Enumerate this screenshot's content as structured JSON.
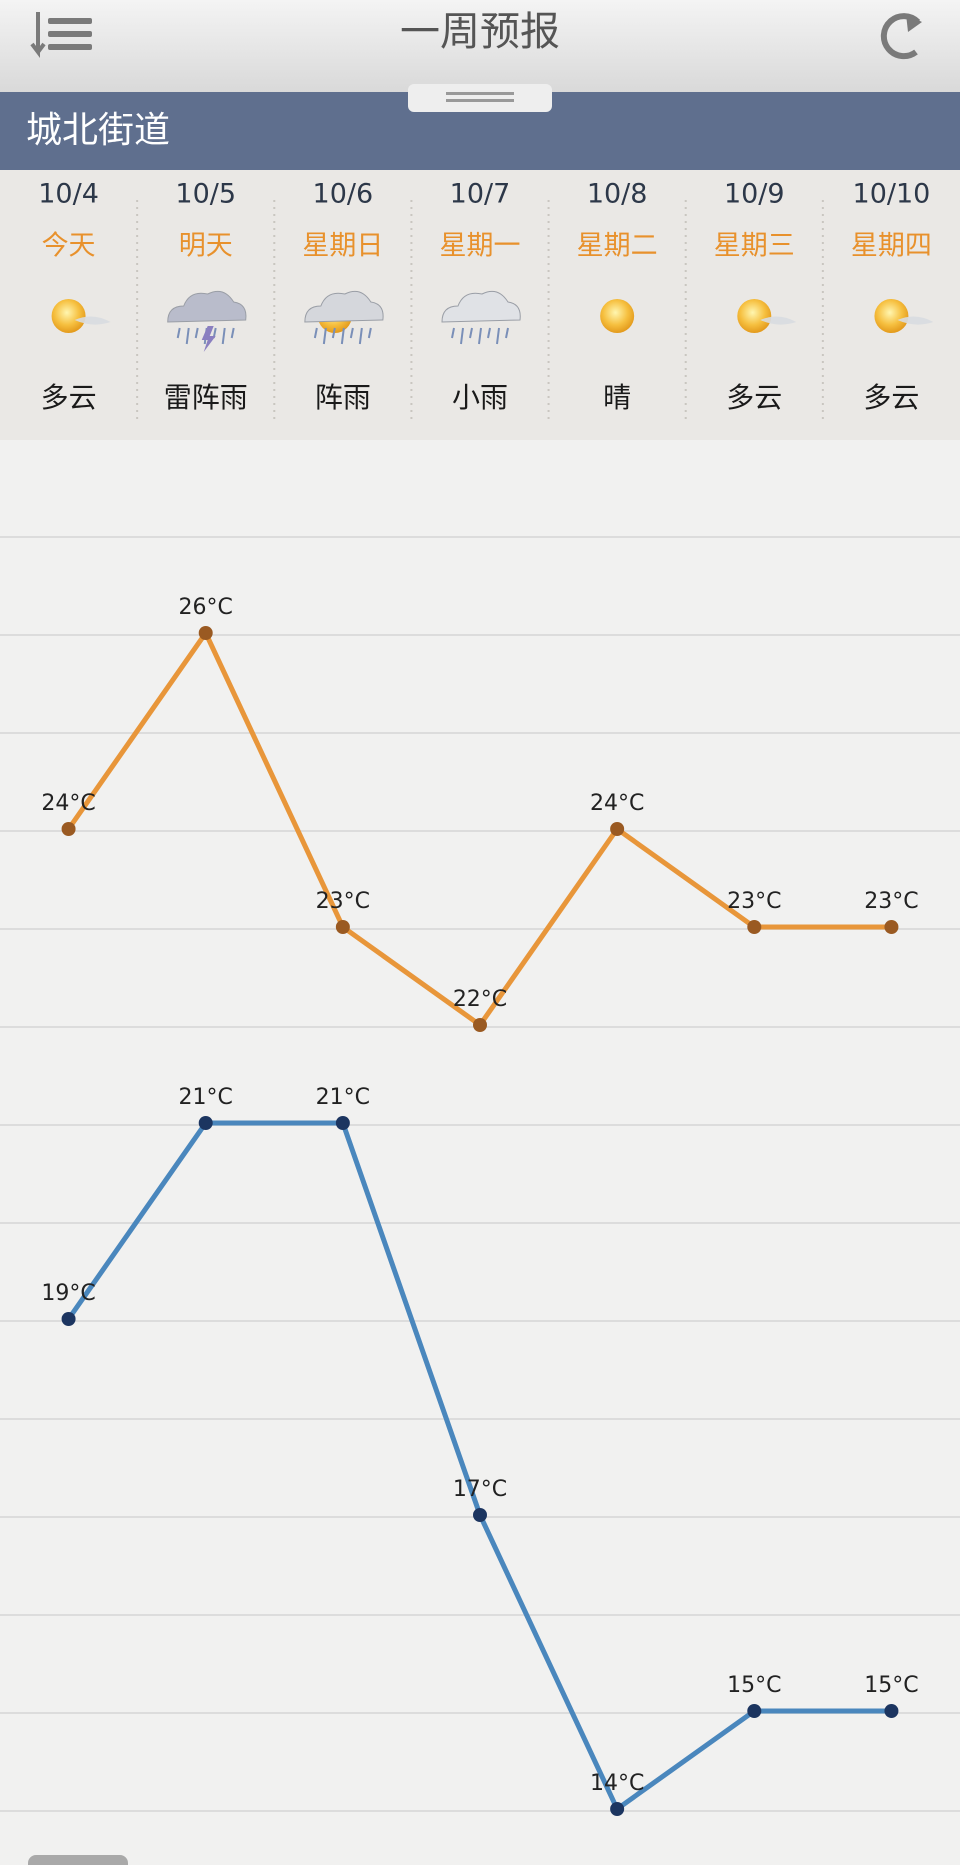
{
  "header": {
    "title": "一周预报"
  },
  "location": "城北街道",
  "days": [
    {
      "date": "10/4",
      "weekday": "今天",
      "condition": "多云"
    },
    {
      "date": "10/5",
      "weekday": "明天",
      "condition": "雷阵雨"
    },
    {
      "date": "10/6",
      "weekday": "星期日",
      "condition": "阵雨"
    },
    {
      "date": "10/7",
      "weekday": "星期一",
      "condition": "小雨"
    },
    {
      "date": "10/8",
      "weekday": "星期二",
      "condition": "晴"
    },
    {
      "date": "10/9",
      "weekday": "星期三",
      "condition": "多云"
    },
    {
      "date": "10/10",
      "weekday": "星期四",
      "condition": "多云"
    }
  ],
  "chart_data": {
    "type": "line",
    "series": [
      {
        "color": "#e8963a",
        "point_color": "#9a5a22",
        "values": [
          24,
          26,
          23,
          22,
          24,
          23,
          23
        ],
        "value_labels": [
          "24°C",
          "26°C",
          "23°C",
          "22°C",
          "24°C",
          "23°C",
          "23°C"
        ]
      },
      {
        "color": "#4a87bd",
        "point_color": "#1c3560",
        "values": [
          19,
          21,
          21,
          17,
          14,
          15,
          15
        ],
        "value_labels": [
          "19°C",
          "21°C",
          "21°C",
          "17°C",
          "14°C",
          "15°C",
          "15°C"
        ]
      }
    ]
  }
}
